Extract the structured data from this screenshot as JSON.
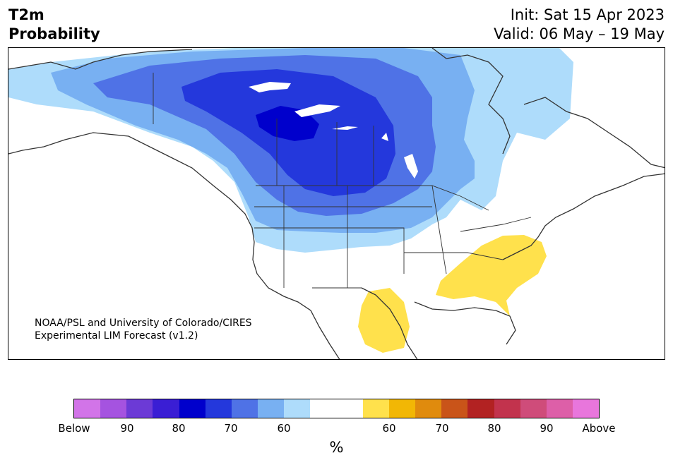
{
  "title": {
    "line1": "T2m",
    "line2": "Probability"
  },
  "init": "Init: Sat 15 Apr 2023",
  "valid": "Valid: 06 May – 19 May",
  "credit": {
    "line1": "NOAA/PSL and University of Colorado/CIRES",
    "line2": "Experimental LIM Forecast (v1.2)"
  },
  "colorbar": {
    "colors": [
      "#d274e8",
      "#a553e0",
      "#6c3ad6",
      "#3a1ed4",
      "#0000cc",
      "#2438dc",
      "#4f72e6",
      "#78b0f2",
      "#aedcfb",
      "#ffffff",
      "#ffffff",
      "#ffe14c",
      "#f2b705",
      "#e08b0d",
      "#c95419",
      "#b22222",
      "#c2334d",
      "#cf4c7a",
      "#dd5fa8",
      "#e876dc"
    ],
    "tick_labels": [
      "Below",
      "90",
      "80",
      "70",
      "60",
      "60",
      "70",
      "80",
      "90",
      "Above"
    ],
    "unit": "%"
  }
}
